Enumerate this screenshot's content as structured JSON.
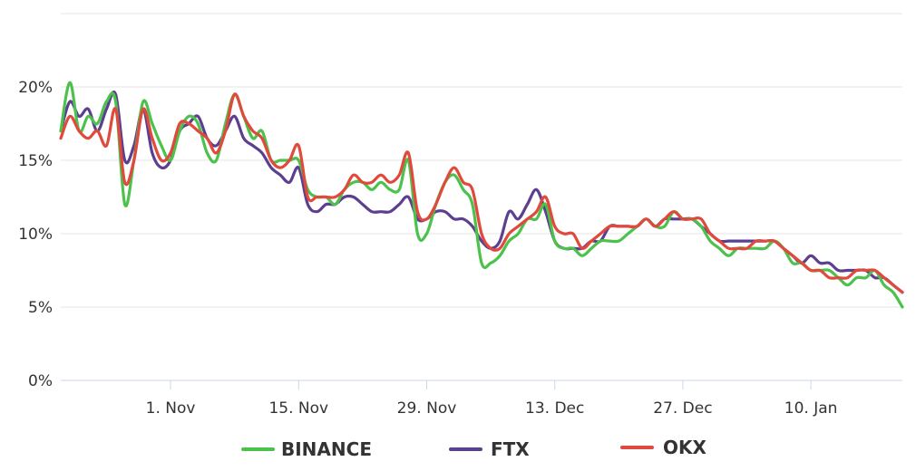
{
  "chart_data": {
    "type": "line",
    "title": "",
    "xlabel": "",
    "ylabel": "",
    "x_range": [
      "2021-10-20",
      "2022-01-20"
    ],
    "ylim": [
      0,
      25
    ],
    "y_ticks": [
      0,
      5,
      10,
      15,
      20
    ],
    "y_tick_labels": [
      "0%",
      "5%",
      "10%",
      "15%",
      "20%"
    ],
    "x_ticks": [
      "2021-11-01",
      "2021-11-15",
      "2021-11-29",
      "2021-12-13",
      "2021-12-27",
      "2022-01-10"
    ],
    "x_tick_labels": [
      "1. Nov",
      "15. Nov",
      "29. Nov",
      "13. Dec",
      "27. Dec",
      "10. Jan"
    ],
    "grid": "horizontal",
    "legend_position": "bottom-center",
    "series": [
      {
        "name": "BINANCE",
        "color": "#4cc24c",
        "x": [
          "2021-10-20",
          "2021-10-21",
          "2021-10-22",
          "2021-10-23",
          "2021-10-24",
          "2021-10-25",
          "2021-10-26",
          "2021-10-27",
          "2021-10-28",
          "2021-10-29",
          "2021-10-30",
          "2021-10-31",
          "2021-11-01",
          "2021-11-02",
          "2021-11-03",
          "2021-11-04",
          "2021-11-05",
          "2021-11-06",
          "2021-11-07",
          "2021-11-08",
          "2021-11-09",
          "2021-11-10",
          "2021-11-11",
          "2021-11-12",
          "2021-11-13",
          "2021-11-14",
          "2021-11-15",
          "2021-11-16",
          "2021-11-17",
          "2021-11-18",
          "2021-11-19",
          "2021-11-20",
          "2021-11-21",
          "2021-11-22",
          "2021-11-23",
          "2021-11-24",
          "2021-11-25",
          "2021-11-26",
          "2021-11-27",
          "2021-11-28",
          "2021-11-29",
          "2021-11-30",
          "2021-12-01",
          "2021-12-02",
          "2021-12-03",
          "2021-12-04",
          "2021-12-05",
          "2021-12-06",
          "2021-12-07",
          "2021-12-08",
          "2021-12-09",
          "2021-12-10",
          "2021-12-11",
          "2021-12-12",
          "2021-12-13",
          "2021-12-14",
          "2021-12-15",
          "2021-12-16",
          "2021-12-17",
          "2021-12-18",
          "2021-12-19",
          "2021-12-20",
          "2021-12-21",
          "2021-12-22",
          "2021-12-23",
          "2021-12-24",
          "2021-12-25",
          "2021-12-26",
          "2021-12-27",
          "2021-12-28",
          "2021-12-29",
          "2021-12-30",
          "2021-12-31",
          "2022-01-01",
          "2022-01-02",
          "2022-01-03",
          "2022-01-04",
          "2022-01-05",
          "2022-01-06",
          "2022-01-07",
          "2022-01-08",
          "2022-01-09",
          "2022-01-10",
          "2022-01-11",
          "2022-01-12",
          "2022-01-13",
          "2022-01-14",
          "2022-01-15",
          "2022-01-16",
          "2022-01-17",
          "2022-01-18",
          "2022-01-19",
          "2022-01-20"
        ],
        "values": [
          17.0,
          20.3,
          17.0,
          18.0,
          17.5,
          19.0,
          19.0,
          12.0,
          15.0,
          19.0,
          17.5,
          16.0,
          15.0,
          17.0,
          18.0,
          17.5,
          15.5,
          15.0,
          17.5,
          19.5,
          18.0,
          16.5,
          17.0,
          15.0,
          15.0,
          15.0,
          15.0,
          13.0,
          12.5,
          12.5,
          12.0,
          13.0,
          13.5,
          13.5,
          13.0,
          13.5,
          13.0,
          13.0,
          15.0,
          10.0,
          10.0,
          12.0,
          13.5,
          14.0,
          13.0,
          12.0,
          8.0,
          8.0,
          8.5,
          9.5,
          10.0,
          11.0,
          11.0,
          12.0,
          9.5,
          9.0,
          9.0,
          8.5,
          9.0,
          9.5,
          9.5,
          9.5,
          10.0,
          10.5,
          11.0,
          10.5,
          10.5,
          11.5,
          11.0,
          11.0,
          10.5,
          9.5,
          9.0,
          8.5,
          9.0,
          9.0,
          9.0,
          9.0,
          9.5,
          9.0,
          8.0,
          8.0,
          7.5,
          7.5,
          7.5,
          7.0,
          6.5,
          7.0,
          7.0,
          7.5,
          6.5,
          6.0,
          5.0
        ]
      },
      {
        "name": "FTX",
        "color": "#5c3f8f",
        "x": [
          "2021-10-20",
          "2021-10-21",
          "2021-10-22",
          "2021-10-23",
          "2021-10-24",
          "2021-10-25",
          "2021-10-26",
          "2021-10-27",
          "2021-10-28",
          "2021-10-29",
          "2021-10-30",
          "2021-10-31",
          "2021-11-01",
          "2021-11-02",
          "2021-11-03",
          "2021-11-04",
          "2021-11-05",
          "2021-11-06",
          "2021-11-07",
          "2021-11-08",
          "2021-11-09",
          "2021-11-10",
          "2021-11-11",
          "2021-11-12",
          "2021-11-13",
          "2021-11-14",
          "2021-11-15",
          "2021-11-16",
          "2021-11-17",
          "2021-11-18",
          "2021-11-19",
          "2021-11-20",
          "2021-11-21",
          "2021-11-22",
          "2021-11-23",
          "2021-11-24",
          "2021-11-25",
          "2021-11-26",
          "2021-11-27",
          "2021-11-28",
          "2021-11-29",
          "2021-11-30",
          "2021-12-01",
          "2021-12-02",
          "2021-12-03",
          "2021-12-04",
          "2021-12-05",
          "2021-12-06",
          "2021-12-07",
          "2021-12-08",
          "2021-12-09",
          "2021-12-10",
          "2021-12-11",
          "2021-12-12",
          "2021-12-13",
          "2021-12-14",
          "2021-12-15",
          "2021-12-16",
          "2021-12-17",
          "2021-12-18",
          "2021-12-19",
          "2021-12-20",
          "2021-12-21",
          "2021-12-22",
          "2021-12-23",
          "2021-12-24",
          "2021-12-25",
          "2021-12-26",
          "2021-12-27",
          "2021-12-28",
          "2021-12-29",
          "2021-12-30",
          "2021-12-31",
          "2022-01-01",
          "2022-01-02",
          "2022-01-03",
          "2022-01-04",
          "2022-01-05",
          "2022-01-06",
          "2022-01-07",
          "2022-01-08",
          "2022-01-09",
          "2022-01-10",
          "2022-01-11",
          "2022-01-12",
          "2022-01-13",
          "2022-01-14",
          "2022-01-15",
          "2022-01-16",
          "2022-01-17",
          "2022-01-18",
          "2022-01-19",
          "2022-01-20"
        ],
        "values": [
          17.0,
          19.0,
          18.0,
          18.5,
          17.0,
          18.5,
          19.5,
          15.0,
          16.0,
          18.5,
          15.5,
          14.5,
          15.0,
          17.0,
          17.5,
          18.0,
          16.5,
          16.0,
          17.0,
          18.0,
          16.5,
          16.0,
          15.5,
          14.5,
          14.0,
          13.5,
          14.5,
          12.0,
          11.5,
          12.0,
          12.0,
          12.5,
          12.5,
          12.0,
          11.5,
          11.5,
          11.5,
          12.0,
          12.5,
          11.0,
          11.0,
          11.5,
          11.5,
          11.0,
          11.0,
          10.5,
          9.5,
          9.0,
          9.5,
          11.5,
          11.0,
          12.0,
          13.0,
          11.5,
          9.5,
          9.0,
          9.0,
          9.0,
          9.5,
          9.5,
          10.5,
          10.5,
          10.5,
          10.5,
          11.0,
          10.5,
          11.0,
          11.0,
          11.0,
          11.0,
          10.5,
          10.0,
          9.5,
          9.5,
          9.5,
          9.5,
          9.5,
          9.5,
          9.5,
          9.0,
          8.5,
          8.0,
          8.5,
          8.0,
          8.0,
          7.5,
          7.5,
          7.5,
          7.5,
          7.0,
          7.0,
          6.5,
          6.0
        ]
      },
      {
        "name": "OKX",
        "color": "#e04a3c",
        "x": [
          "2021-10-20",
          "2021-10-21",
          "2021-10-22",
          "2021-10-23",
          "2021-10-24",
          "2021-10-25",
          "2021-10-26",
          "2021-10-27",
          "2021-10-28",
          "2021-10-29",
          "2021-10-30",
          "2021-10-31",
          "2021-11-01",
          "2021-11-02",
          "2021-11-03",
          "2021-11-04",
          "2021-11-05",
          "2021-11-06",
          "2021-11-07",
          "2021-11-08",
          "2021-11-09",
          "2021-11-10",
          "2021-11-11",
          "2021-11-12",
          "2021-11-13",
          "2021-11-14",
          "2021-11-15",
          "2021-11-16",
          "2021-11-17",
          "2021-11-18",
          "2021-11-19",
          "2021-11-20",
          "2021-11-21",
          "2021-11-22",
          "2021-11-23",
          "2021-11-24",
          "2021-11-25",
          "2021-11-26",
          "2021-11-27",
          "2021-11-28",
          "2021-11-29",
          "2021-11-30",
          "2021-12-01",
          "2021-12-02",
          "2021-12-03",
          "2021-12-04",
          "2021-12-05",
          "2021-12-06",
          "2021-12-07",
          "2021-12-08",
          "2021-12-09",
          "2021-12-10",
          "2021-12-11",
          "2021-12-12",
          "2021-12-13",
          "2021-12-14",
          "2021-12-15",
          "2021-12-16",
          "2021-12-17",
          "2021-12-18",
          "2021-12-19",
          "2021-12-20",
          "2021-12-21",
          "2021-12-22",
          "2021-12-23",
          "2021-12-24",
          "2021-12-25",
          "2021-12-26",
          "2021-12-27",
          "2021-12-28",
          "2021-12-29",
          "2021-12-30",
          "2021-12-31",
          "2022-01-01",
          "2022-01-02",
          "2022-01-03",
          "2022-01-04",
          "2022-01-05",
          "2022-01-06",
          "2022-01-07",
          "2022-01-08",
          "2022-01-09",
          "2022-01-10",
          "2022-01-11",
          "2022-01-12",
          "2022-01-13",
          "2022-01-14",
          "2022-01-15",
          "2022-01-16",
          "2022-01-17",
          "2022-01-18",
          "2022-01-19",
          "2022-01-20"
        ],
        "values": [
          16.5,
          18.0,
          17.0,
          16.5,
          17.0,
          16.0,
          18.5,
          13.5,
          15.0,
          18.5,
          16.5,
          15.0,
          15.5,
          17.5,
          17.5,
          17.0,
          16.5,
          15.5,
          17.0,
          19.5,
          18.0,
          17.0,
          16.5,
          15.0,
          14.5,
          15.0,
          16.0,
          12.5,
          12.5,
          12.5,
          12.5,
          13.0,
          14.0,
          13.5,
          13.5,
          14.0,
          13.5,
          14.0,
          15.5,
          11.5,
          11.0,
          12.0,
          13.5,
          14.5,
          13.5,
          13.0,
          10.0,
          9.0,
          9.0,
          10.0,
          10.5,
          11.0,
          11.5,
          12.5,
          10.5,
          10.0,
          10.0,
          9.0,
          9.5,
          10.0,
          10.5,
          10.5,
          10.5,
          10.5,
          11.0,
          10.5,
          11.0,
          11.5,
          11.0,
          11.0,
          11.0,
          10.0,
          9.5,
          9.0,
          9.0,
          9.0,
          9.5,
          9.5,
          9.5,
          9.0,
          8.5,
          8.0,
          7.5,
          7.5,
          7.0,
          7.0,
          7.0,
          7.5,
          7.5,
          7.5,
          7.0,
          6.5,
          6.0
        ]
      }
    ]
  }
}
